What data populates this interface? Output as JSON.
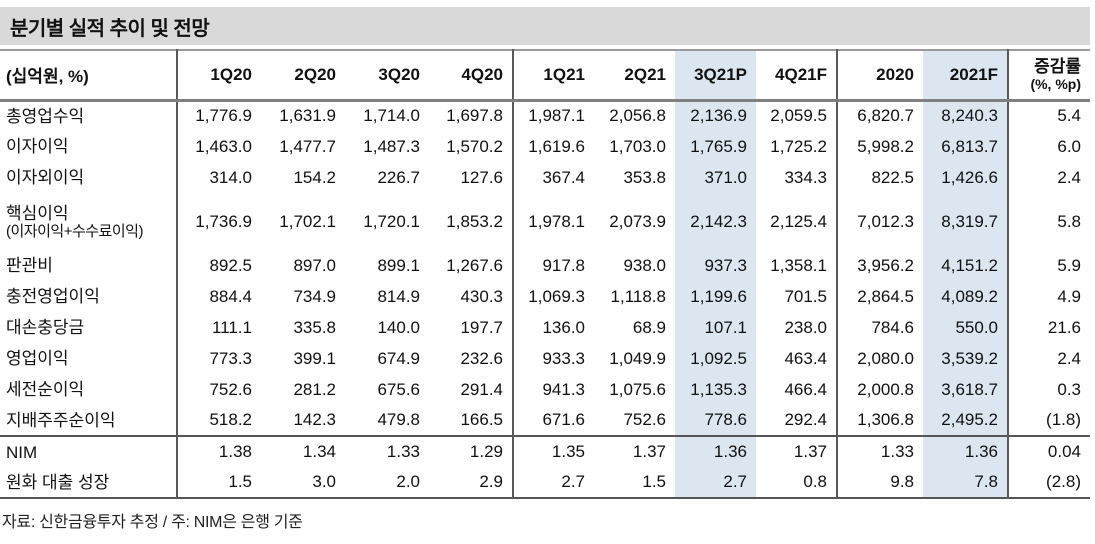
{
  "title": "분기별 실적 추이 및 전망",
  "table": {
    "unit_label": "(십억원, %)",
    "columns": [
      "1Q20",
      "2Q20",
      "3Q20",
      "4Q20",
      "1Q21",
      "2Q21",
      "3Q21P",
      "4Q21F",
      "2020",
      "2021F"
    ],
    "change_header": {
      "line1": "증감률",
      "line2": "(%, %p)"
    },
    "highlight_columns": [
      "3Q21P",
      "2021F"
    ],
    "rows": [
      {
        "label": "총영업수익",
        "values": [
          "1,776.9",
          "1,631.9",
          "1,714.0",
          "1,697.8",
          "1,987.1",
          "2,056.8",
          "2,136.9",
          "2,059.5",
          "6,820.7",
          "8,240.3",
          "5.4"
        ]
      },
      {
        "label": "이자이익",
        "values": [
          "1,463.0",
          "1,477.7",
          "1,487.3",
          "1,570.2",
          "1,619.6",
          "1,703.0",
          "1,765.9",
          "1,725.2",
          "5,998.2",
          "6,813.7",
          "6.0"
        ]
      },
      {
        "label": "이자외이익",
        "values": [
          "314.0",
          "154.2",
          "226.7",
          "127.6",
          "367.4",
          "353.8",
          "371.0",
          "334.3",
          "822.5",
          "1,426.6",
          "2.4"
        ]
      },
      {
        "label": "핵심이익",
        "label2": "(이자이익+수수료이익)",
        "values": [
          "1,736.9",
          "1,702.1",
          "1,720.1",
          "1,853.2",
          "1,978.1",
          "2,073.9",
          "2,142.3",
          "2,125.4",
          "7,012.3",
          "8,319.7",
          "5.8"
        ]
      },
      {
        "label": "판관비",
        "values": [
          "892.5",
          "897.0",
          "899.1",
          "1,267.6",
          "917.8",
          "938.0",
          "937.3",
          "1,358.1",
          "3,956.2",
          "4,151.2",
          "5.9"
        ]
      },
      {
        "label": "충전영업이익",
        "values": [
          "884.4",
          "734.9",
          "814.9",
          "430.3",
          "1,069.3",
          "1,118.8",
          "1,199.6",
          "701.5",
          "2,864.5",
          "4,089.2",
          "4.9"
        ]
      },
      {
        "label": "대손충당금",
        "values": [
          "111.1",
          "335.8",
          "140.0",
          "197.7",
          "136.0",
          "68.9",
          "107.1",
          "238.0",
          "784.6",
          "550.0",
          "21.6"
        ]
      },
      {
        "label": "영업이익",
        "values": [
          "773.3",
          "399.1",
          "674.9",
          "232.6",
          "933.3",
          "1,049.9",
          "1,092.5",
          "463.4",
          "2,080.0",
          "3,539.2",
          "2.4"
        ]
      },
      {
        "label": "세전순이익",
        "values": [
          "752.6",
          "281.2",
          "675.6",
          "291.4",
          "941.3",
          "1,075.6",
          "1,135.3",
          "466.4",
          "2,000.8",
          "3,618.7",
          "0.3"
        ]
      },
      {
        "label": "지배주주순이익",
        "values": [
          "518.2",
          "142.3",
          "479.8",
          "166.5",
          "671.6",
          "752.6",
          "778.6",
          "292.4",
          "1,306.8",
          "2,495.2",
          "(1.8)"
        ]
      },
      {
        "label": "NIM",
        "separator_above": true,
        "values": [
          "1.38",
          "1.34",
          "1.33",
          "1.29",
          "1.35",
          "1.37",
          "1.36",
          "1.37",
          "1.33",
          "1.36",
          "0.04"
        ]
      },
      {
        "label": "원화 대출 성장",
        "values": [
          "1.5",
          "3.0",
          "2.0",
          "2.9",
          "2.7",
          "1.5",
          "2.7",
          "0.8",
          "9.8",
          "7.8",
          "(2.8)"
        ]
      }
    ]
  },
  "footer": {
    "source_note": "자료: 신한금융투자 추정 / 주: NIM은 은행 기준"
  },
  "colors": {
    "title_bg": "#d9d9d9",
    "column_highlight": "#dce6f1",
    "header_rule": "#7f7f7f",
    "group_divider": "#595959",
    "text": "#111111"
  }
}
